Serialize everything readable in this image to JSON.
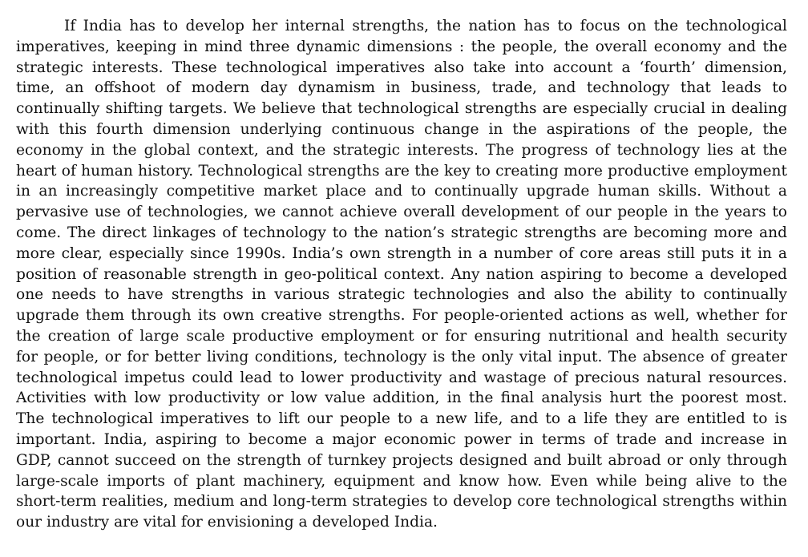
{
  "document": {
    "paragraph_lines": [
      "If India has to develop her internal strengths, the nation has to focus on the technological",
      "imperatives, keeping in mind three dynamic dimensions : the people, the overall economy and the",
      "strategic interests.  These technological imperatives also take into account a ‘fourth’ dimension,",
      "time, an offshoot of modern day dynamism in business, trade, and technology that leads to",
      "continually shifting targets.  We believe that technological strengths are especially crucial in dealing",
      "with this fourth dimension underlying continuous change in the aspirations of the people, the",
      "economy in the global context, and the strategic interests.  The progress of technology lies at the",
      "heart of human history.  Technological strengths are the key to creating more productive employment",
      "in an increasingly competitive market place and to continually upgrade human skills.  Without a",
      "pervasive use of technologies, we cannot achieve overall development of our people in the years to",
      "come.  The direct linkages of technology to the nation’s strategic strengths are becoming more and",
      "more clear, especially since 1990s.  India’s own strength in a number of core areas still puts it in a",
      "position of reasonable strength in geo-political context.  Any nation aspiring to become a developed",
      "one needs to have strengths in various strategic technologies and also the ability to continually",
      "upgrade them through its own creative strengths.  For people-oriented actions as well, whether for",
      "the creation of large scale productive employment or for ensuring nutritional and health security",
      "for people, or for better living conditions, technology is the only vital input.  The absence of greater",
      "technological impetus could lead to lower productivity and wastage of precious natural resources.",
      "Activities with low productivity or low value addition, in the final analysis hurt the poorest most.",
      "The technological imperatives to lift our people to a new life, and to a life they are entitled to is",
      "important.  India, aspiring to become a major economic power in terms of trade and increase in",
      "GDP, cannot succeed on the strength of turnkey projects designed and built abroad or only through",
      "large-scale imports of plant machinery, equipment and know how.  Even while being alive to the",
      "short-term realities, medium and long-term strategies to develop core technological strengths within",
      "our industry are vital for envisioning a developed India."
    ]
  }
}
